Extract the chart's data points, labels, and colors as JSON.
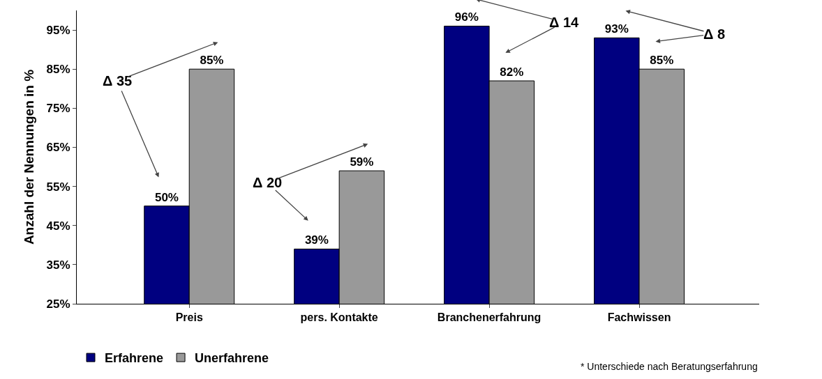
{
  "chart_data": {
    "type": "bar",
    "ylabel": "Anzahl der Nennungen in %",
    "categories": [
      "Preis",
      "pers. Kontakte",
      "Branchenerfahrung",
      "Fachwissen"
    ],
    "series": [
      {
        "name": "Erfahrene",
        "color": "#000080",
        "values": [
          50,
          39,
          96,
          93
        ],
        "value_labels": [
          "50%",
          "39%",
          "96%",
          "93%"
        ]
      },
      {
        "name": "Unerfahrene",
        "color": "#999999",
        "values": [
          85,
          59,
          82,
          85
        ],
        "value_labels": [
          "85%",
          "59%",
          "82%",
          "85%"
        ]
      }
    ],
    "ylim": [
      25,
      100
    ],
    "yticks": [
      {
        "value": 25,
        "label": "25%"
      },
      {
        "value": 35,
        "label": "35%"
      },
      {
        "value": 45,
        "label": "45%"
      },
      {
        "value": 55,
        "label": "55%"
      },
      {
        "value": 65,
        "label": "65%"
      },
      {
        "value": 75,
        "label": "75%"
      },
      {
        "value": 85,
        "label": "85%"
      },
      {
        "value": 95,
        "label": "95%"
      }
    ],
    "grid": false,
    "legend": "bottom left",
    "annotations": [
      "Δ 35",
      "Δ 20",
      "Δ 14",
      "Δ 8",
      "* Unterschiede nach Beratungserfahrung"
    ]
  }
}
